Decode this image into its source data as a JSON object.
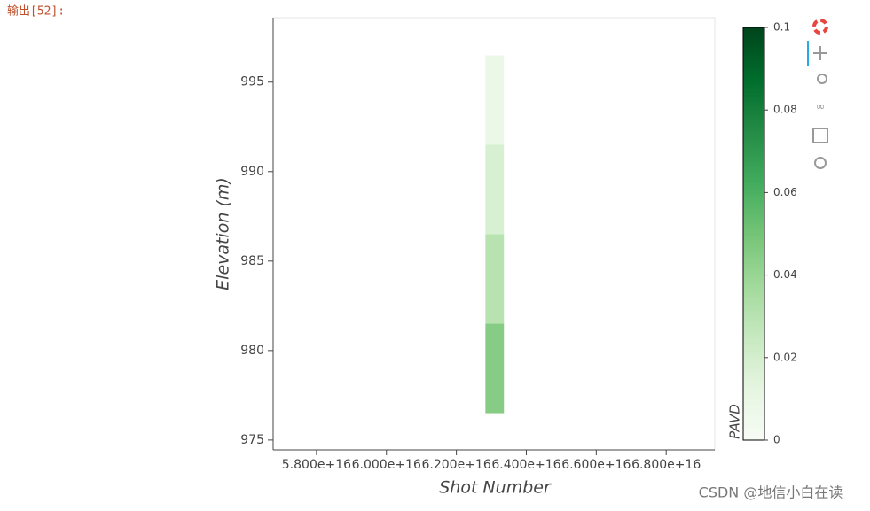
{
  "prompt": "输出[52]:",
  "watermark": "CSDN @地信小白在读",
  "chart_data": {
    "type": "heatmap",
    "xlabel": "Shot Number",
    "ylabel": "Elevation (m)",
    "xlim": [
      56760000000000000,
      69390000000000000
    ],
    "ylim": [
      974.45,
      998.6
    ],
    "xticks": [
      {
        "value": 58000000000000000,
        "label": "5.800e+16"
      },
      {
        "value": 60000000000000000,
        "label": "6.000e+16"
      },
      {
        "value": 62000000000000000,
        "label": "6.200e+16"
      },
      {
        "value": 64000000000000000,
        "label": "6.400e+16"
      },
      {
        "value": 66000000000000000,
        "label": "6.600e+16"
      },
      {
        "value": 68000000000000000,
        "label": "6.800e+16"
      }
    ],
    "yticks": [
      975,
      980,
      985,
      990,
      995
    ],
    "x_bins": [
      62830000000000000,
      63360000000000000
    ],
    "y_bins": [
      976.5,
      981.5,
      986.5,
      991.5,
      996.5
    ],
    "values": [
      0.045,
      0.03,
      0.018,
      0.008
    ],
    "colorbar": {
      "label": "PAVD",
      "lim": [
        0,
        0.1
      ],
      "ticks": [
        0,
        0.02,
        0.04,
        0.06,
        0.08,
        0.1
      ],
      "colors": [
        "#f7fcf5",
        "#e5f5e0",
        "#c7e9c0",
        "#a1d99b",
        "#74c476",
        "#41ab5d",
        "#238b45",
        "#006d2c",
        "#00441b"
      ]
    }
  }
}
